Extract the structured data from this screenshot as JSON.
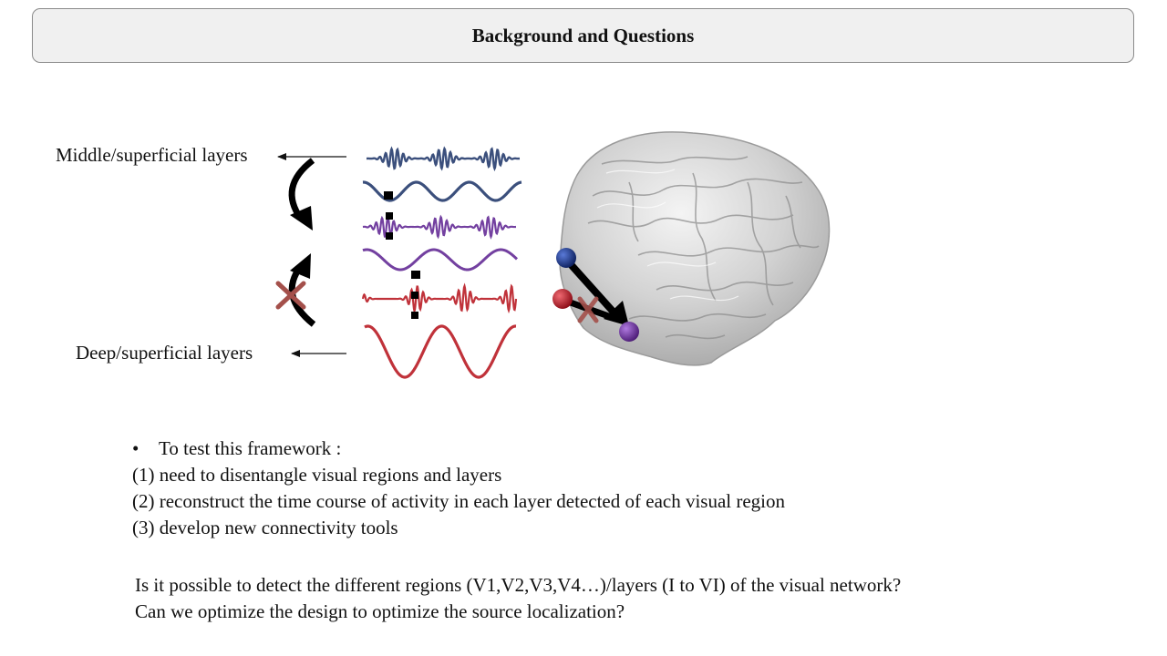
{
  "header": {
    "title": "Background and Questions"
  },
  "figure": {
    "labels": {
      "top": "Middle/superficial layers",
      "bottom": "Deep/superficial layers"
    },
    "colors": {
      "blue": "#3b4f7c",
      "purple": "#7340a0",
      "red": "#c0323a",
      "cross": "#a4504b",
      "node_blue": "#0f2a78",
      "node_red": "#b8101c",
      "node_purple": "#6a2a9c"
    }
  },
  "bullets": {
    "intro": "To test this framework :",
    "items": [
      "(1) need to disentangle visual regions and layers",
      "(2) reconstruct the time course of activity  in each layer detected of each visual region",
      "(3) develop new connectivity tools"
    ]
  },
  "questions": [
    "Is it possible to detect the different regions (V1,V2,V3,V4…)/layers (I to VI) of the visual network?",
    "Can we optimize the design to optimize the source localization?"
  ]
}
